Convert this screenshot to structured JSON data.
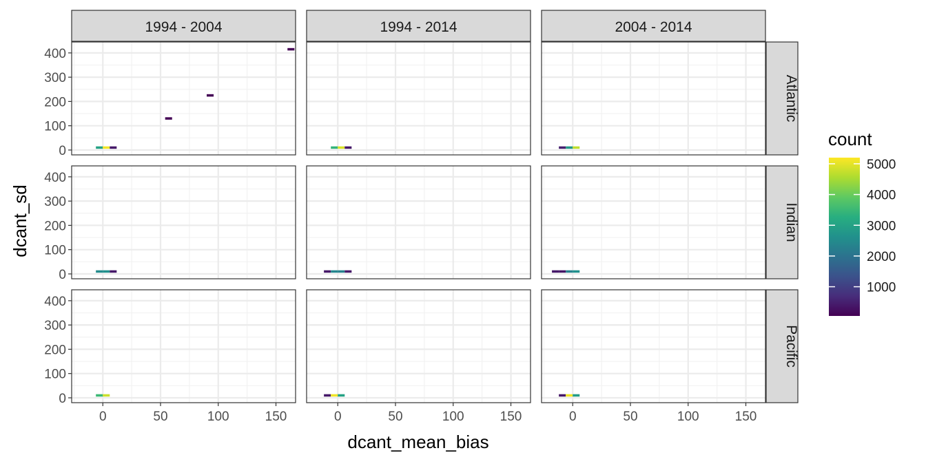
{
  "chart_data": {
    "type": "heatmap",
    "xlabel": "dcant_mean_bias",
    "ylabel": "dcant_sd",
    "col_facets": [
      "1994 - 2004",
      "1994 - 2014",
      "2004 - 2014"
    ],
    "row_facets": [
      "Atlantic",
      "Indian",
      "Pacific"
    ],
    "xlim": [
      -27,
      167
    ],
    "ylim": [
      -20,
      445
    ],
    "x_ticks": [
      0,
      50,
      100,
      150
    ],
    "y_ticks": [
      0,
      100,
      200,
      300,
      400
    ],
    "bin_width": 6,
    "bin_height": 10,
    "grid": true,
    "legend": {
      "title": "count",
      "position": "right",
      "ticks": [
        1000,
        2000,
        3000,
        4000,
        5000
      ],
      "range": [
        50,
        5200
      ]
    },
    "panels": [
      {
        "col": "1994 - 2004",
        "row": "Atlantic",
        "cells": [
          [
            -3,
            10,
            3000
          ],
          [
            3,
            10,
            5100
          ],
          [
            9,
            10,
            400
          ],
          [
            57,
            130,
            60
          ],
          [
            93,
            225,
            60
          ],
          [
            163,
            415,
            60
          ]
        ]
      },
      {
        "col": "1994 - 2014",
        "row": "Atlantic",
        "cells": [
          [
            -3,
            10,
            3400
          ],
          [
            3,
            10,
            4900
          ],
          [
            9,
            10,
            400
          ]
        ]
      },
      {
        "col": "2004 - 2014",
        "row": "Atlantic",
        "cells": [
          [
            -9,
            10,
            500
          ],
          [
            -3,
            10,
            2800
          ],
          [
            3,
            10,
            4700
          ]
        ]
      },
      {
        "col": "1994 - 2004",
        "row": "Indian",
        "cells": [
          [
            -3,
            10,
            2500
          ],
          [
            3,
            10,
            2600
          ],
          [
            9,
            10,
            400
          ]
        ]
      },
      {
        "col": "1994 - 2014",
        "row": "Indian",
        "cells": [
          [
            -9,
            10,
            400
          ],
          [
            -3,
            10,
            2400
          ],
          [
            3,
            10,
            2300
          ],
          [
            9,
            10,
            400
          ]
        ]
      },
      {
        "col": "2004 - 2014",
        "row": "Indian",
        "cells": [
          [
            -15,
            10,
            400
          ],
          [
            -9,
            10,
            350
          ],
          [
            -3,
            10,
            2300
          ],
          [
            3,
            10,
            2600
          ]
        ]
      },
      {
        "col": "1994 - 2004",
        "row": "Pacific",
        "cells": [
          [
            -3,
            10,
            3500
          ],
          [
            3,
            10,
            4800
          ]
        ]
      },
      {
        "col": "1994 - 2014",
        "row": "Pacific",
        "cells": [
          [
            -9,
            10,
            400
          ],
          [
            -3,
            10,
            5100
          ],
          [
            3,
            10,
            3000
          ]
        ]
      },
      {
        "col": "2004 - 2014",
        "row": "Pacific",
        "cells": [
          [
            -9,
            10,
            400
          ],
          [
            -3,
            10,
            5100
          ],
          [
            3,
            10,
            2900
          ]
        ]
      }
    ]
  }
}
